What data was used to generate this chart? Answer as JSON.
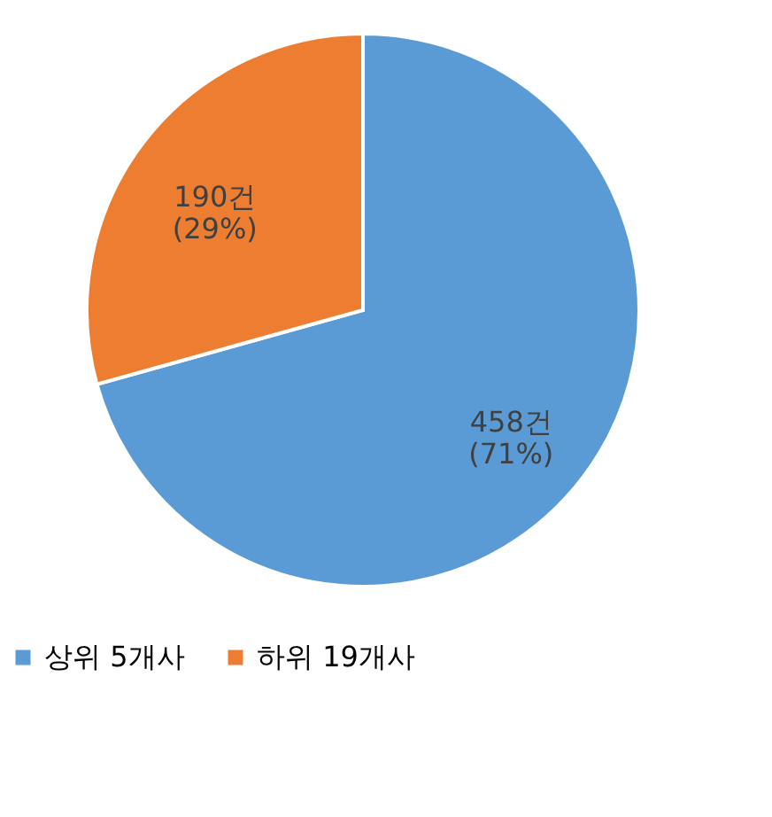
{
  "chart_data": {
    "type": "pie",
    "categories": [
      "상위 5개사",
      "하위 19개사"
    ],
    "values": [
      458,
      190
    ],
    "colors": [
      "#5b9bd5",
      "#ed7d31"
    ],
    "value_labels": [
      "458건\n(71%)",
      "190건\n(29%)"
    ],
    "legend": "bottom"
  }
}
